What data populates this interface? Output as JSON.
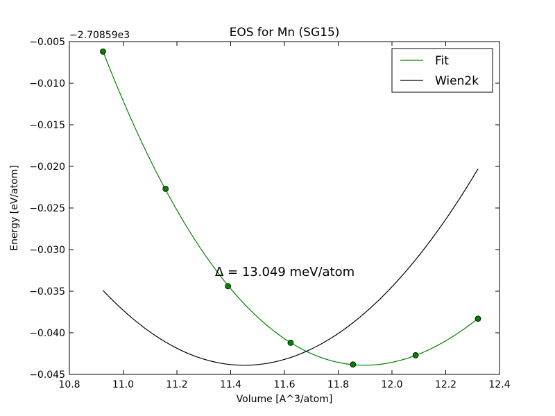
{
  "chart_data": {
    "type": "line",
    "title": "EOS for Mn (SG15)",
    "xlabel": "Volume [A^3/atom]",
    "ylabel": "Energy [eV/atom]",
    "y_offset_label": "−2.70859e3",
    "xlim": [
      10.8,
      12.4
    ],
    "ylim": [
      -0.045,
      -0.005
    ],
    "x_ticks": [
      10.8,
      11.0,
      11.2,
      11.4,
      11.6,
      11.8,
      12.0,
      12.2,
      12.4
    ],
    "x_tick_labels": [
      "10.8",
      "11.0",
      "11.2",
      "11.4",
      "11.6",
      "11.8",
      "12.0",
      "12.2",
      "12.4"
    ],
    "y_ticks": [
      -0.045,
      -0.04,
      -0.035,
      -0.03,
      -0.025,
      -0.02,
      -0.015,
      -0.01,
      -0.005
    ],
    "y_tick_labels": [
      "−0.045",
      "−0.040",
      "−0.035",
      "−0.030",
      "−0.025",
      "−0.020",
      "−0.015",
      "−0.010",
      "−0.005"
    ],
    "annotation": "Δ = 13.049 meV/atom",
    "legend_placement": "top-right",
    "grid": false,
    "series": [
      {
        "name": "Fit",
        "color": "#008000",
        "curve": "quadratic-fit",
        "points": [
          [
            10.925,
            -0.0062
          ],
          [
            11.158,
            -0.0227
          ],
          [
            11.39,
            -0.0344
          ],
          [
            11.623,
            -0.0412
          ],
          [
            11.855,
            -0.0438
          ],
          [
            12.088,
            -0.0427
          ],
          [
            12.32,
            -0.0383
          ]
        ]
      },
      {
        "name": "Wien2k",
        "color": "#000000",
        "curve": "parabola",
        "x_range": [
          10.925,
          12.32
        ],
        "minimum": [
          11.45,
          -0.0439
        ],
        "endpoints": [
          [
            10.925,
            -0.0349
          ],
          [
            12.32,
            -0.0203
          ]
        ]
      }
    ]
  }
}
